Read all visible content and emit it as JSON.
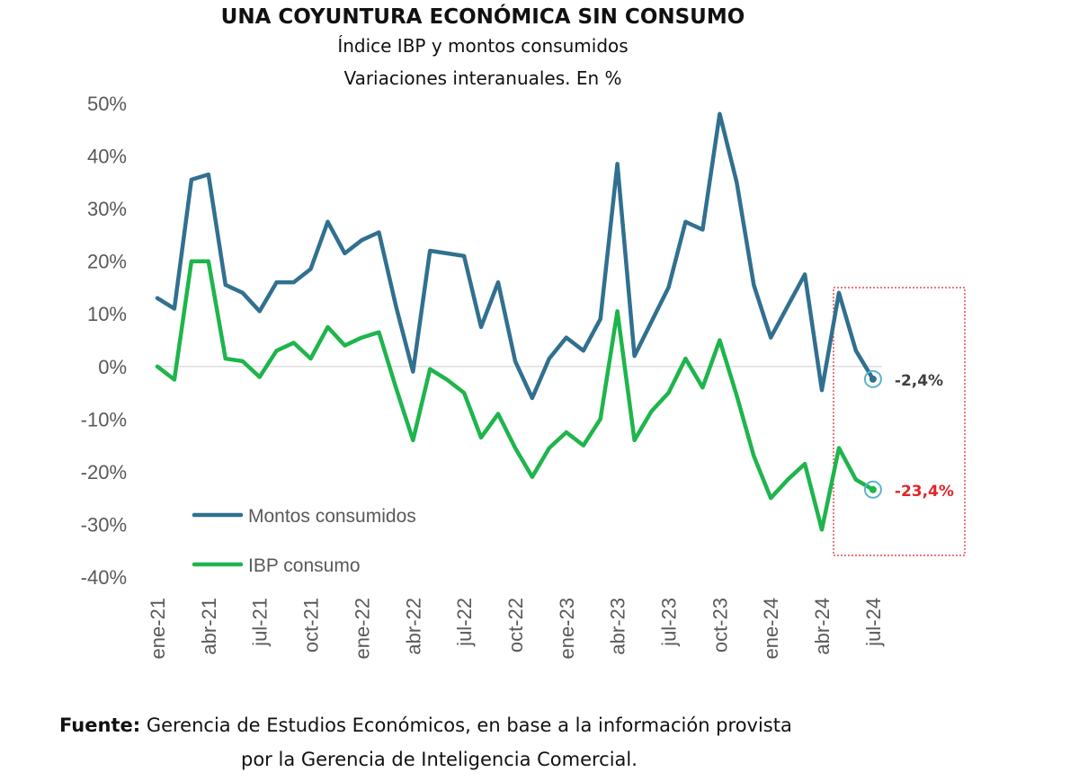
{
  "chart_data": {
    "type": "line",
    "title": "UNA COYUNTURA ECONÓMICA SIN CONSUMO",
    "subtitle_line1": "Índice IBP y montos consumidos",
    "subtitle_line2": "Variaciones interanuales. En %",
    "ylim": [
      -40,
      50
    ],
    "yticks": [
      "50%",
      "40%",
      "30%",
      "20%",
      "10%",
      "0%",
      "-10%",
      "-20%",
      "-30%",
      "-40%"
    ],
    "ytick_values": [
      50,
      40,
      30,
      20,
      10,
      0,
      -10,
      -20,
      -30,
      -40
    ],
    "xtick_labels": [
      "ene-21",
      "abr-21",
      "jul-21",
      "oct-21",
      "ene-22",
      "abr-22",
      "jul-22",
      "oct-22",
      "ene-23",
      "abr-23",
      "jul-23",
      "oct-23",
      "ene-24",
      "abr-24",
      "jul-24"
    ],
    "x": [
      "ene-21",
      "feb-21",
      "mar-21",
      "abr-21",
      "may-21",
      "jun-21",
      "jul-21",
      "ago-21",
      "sep-21",
      "oct-21",
      "nov-21",
      "dic-21",
      "ene-22",
      "feb-22",
      "mar-22",
      "abr-22",
      "may-22",
      "jun-22",
      "jul-22",
      "ago-22",
      "sep-22",
      "oct-22",
      "nov-22",
      "dic-22",
      "ene-23",
      "feb-23",
      "mar-23",
      "abr-23",
      "may-23",
      "jun-23",
      "jul-23",
      "ago-23",
      "sep-23",
      "oct-23",
      "nov-23",
      "dic-23",
      "ene-24",
      "feb-24",
      "mar-24",
      "abr-24",
      "may-24",
      "jun-24",
      "jul-24"
    ],
    "series": [
      {
        "name": "Montos consumidos",
        "color": "#31708f",
        "values": [
          13,
          11,
          35.5,
          36.5,
          15.5,
          14,
          10.5,
          16,
          16,
          18.5,
          27.5,
          21.5,
          24,
          25.5,
          11.5,
          -1,
          22,
          21.5,
          21,
          7.5,
          16,
          1,
          -6,
          1.5,
          5.5,
          3,
          9,
          38.5,
          2,
          8.5,
          15,
          27.5,
          26,
          48,
          35,
          15.5,
          5.5,
          11.5,
          17.5,
          -4.5,
          14,
          3,
          -2.4
        ],
        "end_label": "-2,4%",
        "end_label_color": "#404040"
      },
      {
        "name": "IBP consumo",
        "color": "#1eb54c",
        "values": [
          0,
          -2.5,
          20,
          20,
          1.5,
          1,
          -2,
          3,
          4.5,
          1.5,
          7.5,
          4,
          5.5,
          6.5,
          -4,
          -14,
          -0.5,
          -2.5,
          -5,
          -13.5,
          -9,
          -15.5,
          -21,
          -15.5,
          -12.5,
          -15,
          -10,
          10.5,
          -14,
          -8.5,
          -5,
          1.5,
          -4,
          5,
          -5.5,
          -17,
          -25,
          -21.5,
          -18.5,
          -31,
          -15.5,
          -21.5,
          -23.4
        ],
        "end_label": "-23,4%",
        "end_label_color": "#e0262a"
      }
    ],
    "legend_position": "lower-left",
    "grid": false,
    "highlight_box_color": "#e0262a"
  },
  "source": {
    "label": "Fuente:",
    "line1": "Gerencia de Estudios Económicos, en base a la información provista",
    "line2": "por la Gerencia de Inteligencia Comercial."
  }
}
